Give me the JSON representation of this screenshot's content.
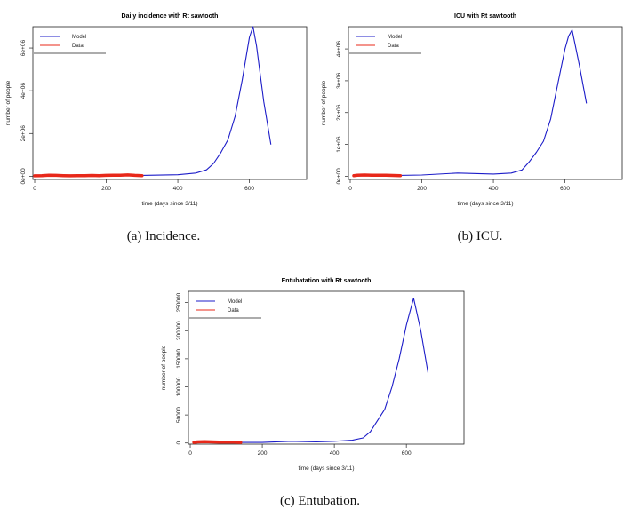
{
  "captions": [
    "(a) Incidence.",
    "(b) ICU.",
    "(c) Entubation."
  ],
  "colors": {
    "model": "#1c1cc8",
    "data": "#e8281a"
  },
  "chart_data": [
    {
      "type": "line",
      "title": "Daily incidence with Rt sawtooth",
      "xlabel": "time (days since 3/11)",
      "ylabel": "number of people",
      "xlim": [
        -5,
        760
      ],
      "ylim": [
        -150000,
        7000000
      ],
      "xticks": [
        0,
        200,
        400,
        600
      ],
      "xtick_labels": [
        "0",
        "200",
        "400",
        "600"
      ],
      "yticks": [
        0,
        2000000,
        4000000,
        6000000
      ],
      "ytick_labels": [
        "0e+00",
        "2e+06",
        "4e+06",
        "6e+06"
      ],
      "legend": [
        "Model",
        "Data"
      ],
      "legend_position": "top-left",
      "series": [
        {
          "name": "Model",
          "x": [
            0,
            100,
            200,
            300,
            400,
            450,
            480,
            500,
            520,
            540,
            560,
            580,
            600,
            610,
            620,
            640,
            660
          ],
          "y": [
            10000,
            20000,
            30000,
            40000,
            70000,
            150000,
            300000,
            600000,
            1100000,
            1700000,
            2800000,
            4500000,
            6500000,
            7000000,
            6100000,
            3500000,
            1500000
          ]
        },
        {
          "name": "Data",
          "x": [
            0,
            20,
            40,
            60,
            80,
            100,
            120,
            140,
            160,
            180,
            200,
            220,
            240,
            260,
            280,
            300
          ],
          "y": [
            20000,
            30000,
            50000,
            40000,
            30000,
            20000,
            25000,
            30000,
            35000,
            30000,
            40000,
            45000,
            50000,
            60000,
            40000,
            30000
          ]
        }
      ]
    },
    {
      "type": "line",
      "title": "ICU with Rt sawtooth",
      "xlabel": "time (days since 3/11)",
      "ylabel": "number of people",
      "xlim": [
        -5,
        760
      ],
      "ylim": [
        -100000,
        4700000
      ],
      "xticks": [
        0,
        200,
        400,
        600
      ],
      "xtick_labels": [
        "0",
        "200",
        "400",
        "600"
      ],
      "yticks": [
        0,
        1000000,
        2000000,
        3000000,
        4000000
      ],
      "ytick_labels": [
        "0e+00",
        "1e+06",
        "2e+06",
        "3e+06",
        "4e+06"
      ],
      "legend": [
        "Model",
        "Data"
      ],
      "legend_position": "top-left",
      "series": [
        {
          "name": "Model",
          "x": [
            10,
            100,
            200,
            300,
            400,
            450,
            480,
            500,
            520,
            540,
            560,
            580,
            600,
            610,
            620,
            640,
            660
          ],
          "y": [
            10000,
            20000,
            40000,
            100000,
            70000,
            100000,
            200000,
            450000,
            750000,
            1100000,
            1800000,
            2900000,
            4000000,
            4400000,
            4600000,
            3500000,
            2300000
          ]
        },
        {
          "name": "Data",
          "x": [
            10,
            20,
            40,
            60,
            80,
            100,
            120,
            140
          ],
          "y": [
            20000,
            30000,
            40000,
            35000,
            30000,
            30000,
            25000,
            20000
          ]
        }
      ]
    },
    {
      "type": "line",
      "title": "Entubatation with Rt sawtooth",
      "xlabel": "time (days since 3/11)",
      "ylabel": "number of people",
      "xlim": [
        -5,
        760
      ],
      "ylim": [
        -2000,
        270000
      ],
      "xticks": [
        0,
        200,
        400,
        600
      ],
      "xtick_labels": [
        "0",
        "200",
        "400",
        "600"
      ],
      "yticks": [
        0,
        50000,
        100000,
        150000,
        200000,
        250000
      ],
      "ytick_labels": [
        "0",
        "50000",
        "100000",
        "150000",
        "200000",
        "250000"
      ],
      "legend": [
        "Model",
        "Data"
      ],
      "legend_position": "top-left",
      "series": [
        {
          "name": "Model",
          "x": [
            10,
            100,
            200,
            280,
            350,
            400,
            450,
            480,
            500,
            520,
            540,
            560,
            580,
            600,
            620,
            640,
            660
          ],
          "y": [
            1000,
            1000,
            1000,
            3000,
            2000,
            3000,
            5000,
            9000,
            20000,
            40000,
            60000,
            100000,
            150000,
            210000,
            258000,
            200000,
            125000
          ]
        },
        {
          "name": "Data",
          "x": [
            10,
            20,
            40,
            60,
            80,
            100,
            120,
            140
          ],
          "y": [
            1000,
            2000,
            2500,
            2000,
            1500,
            1500,
            1500,
            1000
          ]
        }
      ]
    }
  ]
}
